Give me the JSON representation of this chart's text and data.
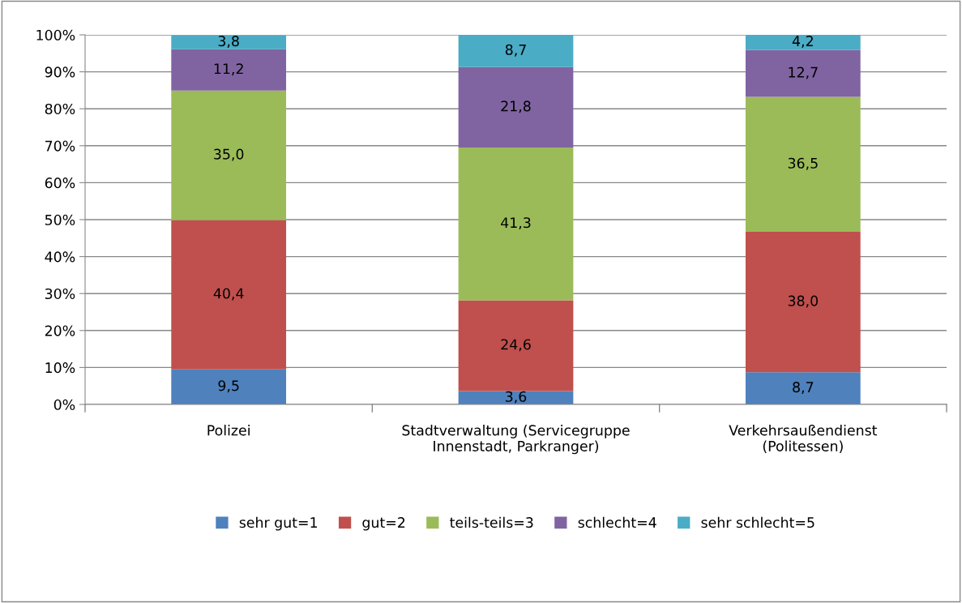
{
  "chart_data": {
    "type": "bar",
    "stacked": true,
    "categories": [
      "Polizei",
      "Stadtverwaltung (Servicegruppe\nInnenstadt, Parkranger)",
      "Verkehrsaußendienst\n(Politessen)"
    ],
    "series": [
      {
        "name": "sehr gut=1",
        "color": "#4f81bd",
        "values": [
          9.5,
          3.6,
          8.7
        ],
        "value_labels": [
          "9,5",
          "3,6",
          "8,7"
        ]
      },
      {
        "name": "gut=2",
        "color": "#c0504d",
        "values": [
          40.4,
          24.6,
          38.0
        ],
        "value_labels": [
          "40,4",
          "24,6",
          "38,0"
        ]
      },
      {
        "name": "teils-teils=3",
        "color": "#9bbb59",
        "values": [
          35.0,
          41.3,
          36.5
        ],
        "value_labels": [
          "35,0",
          "41,3",
          "36,5"
        ]
      },
      {
        "name": "schlecht=4",
        "color": "#8064a2",
        "values": [
          11.2,
          21.8,
          12.7
        ],
        "value_labels": [
          "11,2",
          "21,8",
          "12,7"
        ]
      },
      {
        "name": "sehr schlecht=5",
        "color": "#4bacc6",
        "values": [
          3.8,
          8.7,
          4.2
        ],
        "value_labels": [
          "3,8",
          "8,7",
          "4,2"
        ]
      }
    ],
    "ylim": [
      0,
      100
    ],
    "yticks": [
      {
        "value": 0,
        "label": "0%"
      },
      {
        "value": 10,
        "label": "10%"
      },
      {
        "value": 20,
        "label": "20%"
      },
      {
        "value": 30,
        "label": "30%"
      },
      {
        "value": 40,
        "label": "40%"
      },
      {
        "value": 50,
        "label": "50%"
      },
      {
        "value": 60,
        "label": "60%"
      },
      {
        "value": 70,
        "label": "70%"
      },
      {
        "value": 80,
        "label": "80%"
      },
      {
        "value": 90,
        "label": "90%"
      },
      {
        "value": 100,
        "label": "100%"
      }
    ],
    "grid": "y",
    "legend": "bottom"
  }
}
